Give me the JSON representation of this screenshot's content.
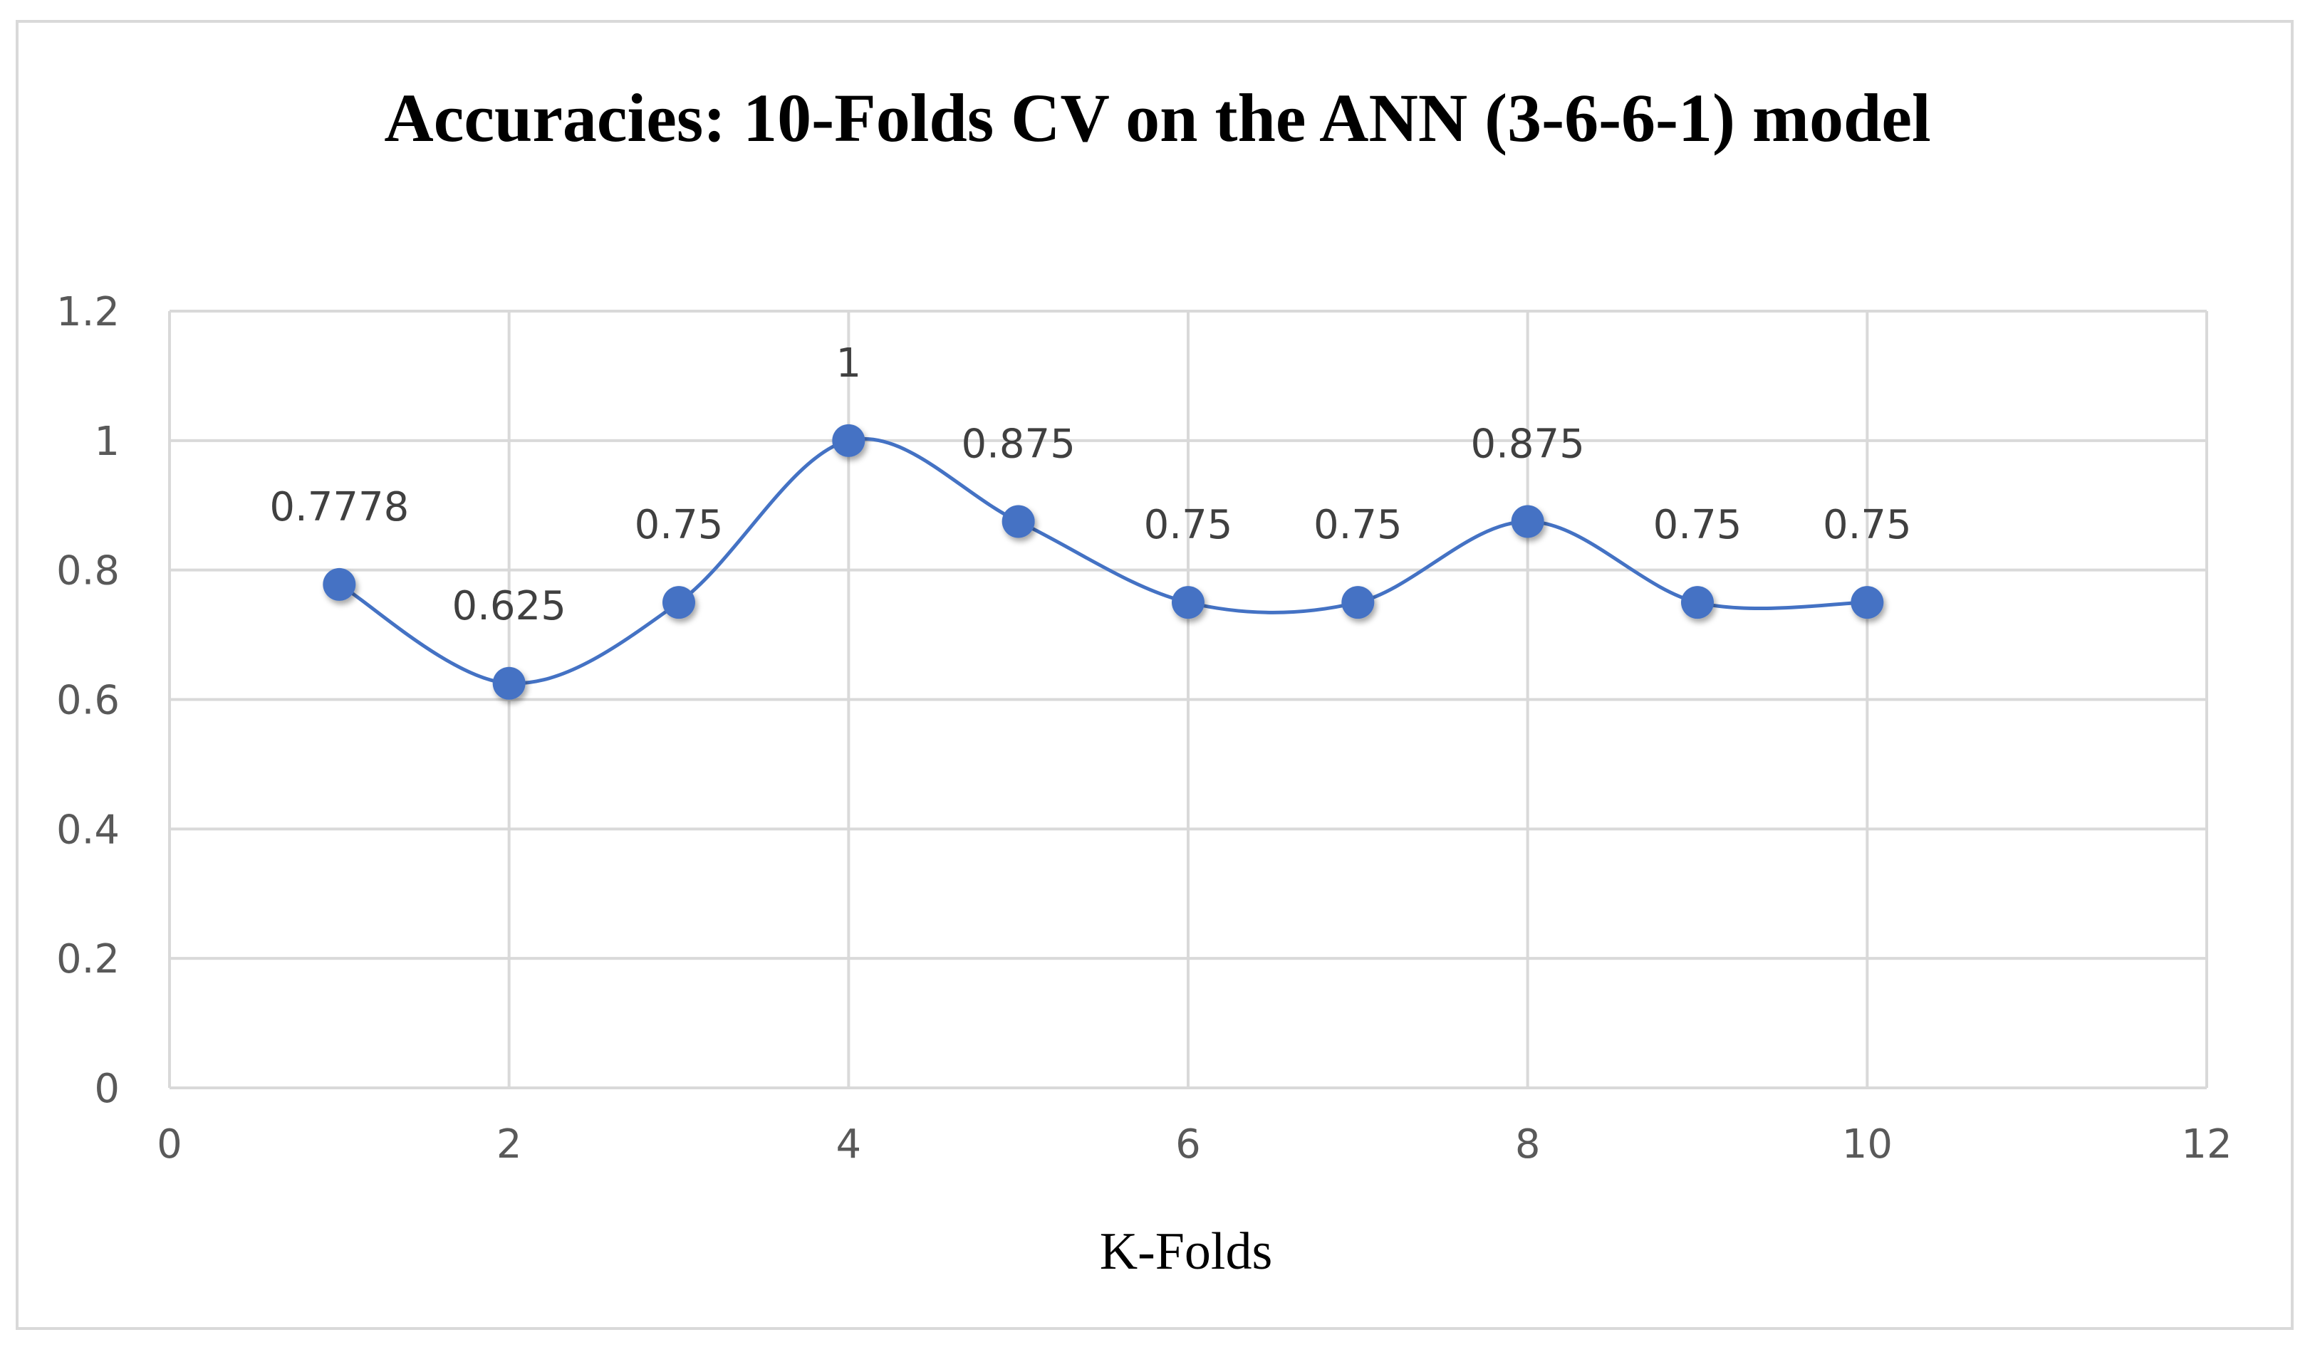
{
  "chart_data": {
    "type": "scatter",
    "title": "Accuracies: 10-Folds CV on the ANN (3-6-6-1) model",
    "xlabel": "K-Folds",
    "ylabel": "",
    "xlim": [
      0,
      12
    ],
    "ylim": [
      0,
      1.2
    ],
    "x_ticks": [
      "0",
      "2",
      "4",
      "6",
      "8",
      "10",
      "12"
    ],
    "y_ticks": [
      "0",
      "0.2",
      "0.4",
      "0.6",
      "0.8",
      "1",
      "1.2"
    ],
    "grid": true,
    "legend": "none",
    "smoothed_line": true,
    "series": [
      {
        "color": "#4472c4",
        "x": [
          1,
          2,
          3,
          4,
          5,
          6,
          7,
          8,
          9,
          10
        ],
        "y": [
          0.7778,
          0.625,
          0.75,
          1,
          0.875,
          0.75,
          0.75,
          0.875,
          0.75,
          0.75
        ],
        "labels": [
          "0.7778",
          "0.625",
          "0.75",
          "1",
          "0.875",
          "0.75",
          "0.75",
          "0.875",
          "0.75",
          "0.75"
        ]
      }
    ]
  },
  "colors": {
    "gridline": "#d9d9d9",
    "frame": "#d9d9d9",
    "line": "#4472c4",
    "marker": "#4472c4"
  }
}
